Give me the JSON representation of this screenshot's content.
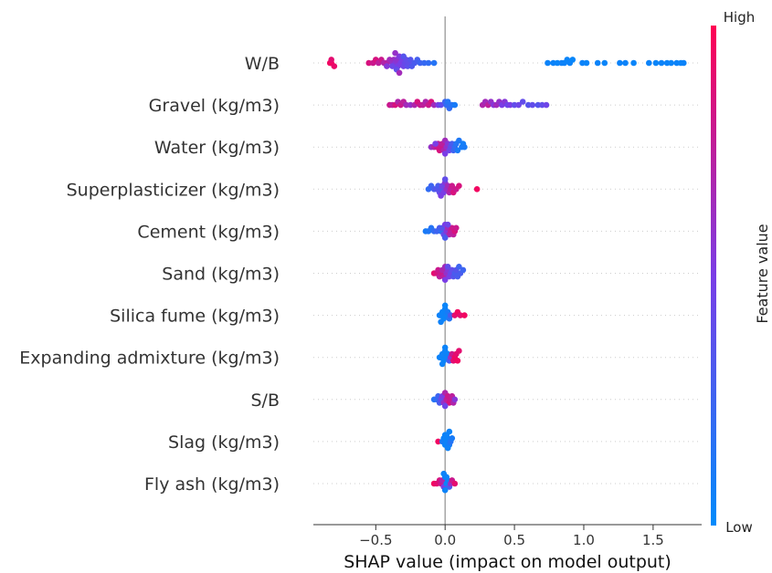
{
  "chart_data": {
    "type": "scatter",
    "subtype": "shap-beeswarm",
    "title": "",
    "xlabel": "SHAP value (impact on model output)",
    "xlim": [
      -0.95,
      1.85
    ],
    "xticks": [
      {
        "value": -0.5,
        "label": "−0.5"
      },
      {
        "value": 0.0,
        "label": "0.0"
      },
      {
        "value": 0.5,
        "label": "0.5"
      },
      {
        "value": 1.0,
        "label": "1.0"
      },
      {
        "value": 1.5,
        "label": "1.5"
      }
    ],
    "colorbar": {
      "title": "Feature value",
      "high_label": "High",
      "low_label": "Low",
      "high_color": "#ff0052",
      "low_color": "#008bfb"
    },
    "features": [
      {
        "name": "W/B",
        "points": [
          [
            -0.83,
            0.95
          ],
          [
            -0.82,
            0.95
          ],
          [
            -0.82,
            0.9
          ],
          [
            -0.8,
            0.92
          ],
          [
            -0.55,
            0.85
          ],
          [
            -0.52,
            0.8
          ],
          [
            -0.5,
            0.85
          ],
          [
            -0.48,
            0.75
          ],
          [
            -0.46,
            0.8
          ],
          [
            -0.44,
            0.7
          ],
          [
            -0.42,
            0.72
          ],
          [
            -0.4,
            0.65
          ],
          [
            -0.38,
            0.6
          ],
          [
            -0.37,
            0.62
          ],
          [
            -0.36,
            0.55
          ],
          [
            -0.35,
            0.58
          ],
          [
            -0.34,
            0.5
          ],
          [
            -0.33,
            0.52
          ],
          [
            -0.32,
            0.5
          ],
          [
            -0.31,
            0.48
          ],
          [
            -0.3,
            0.45
          ],
          [
            -0.29,
            0.42
          ],
          [
            -0.28,
            0.4
          ],
          [
            -0.27,
            0.38
          ],
          [
            -0.26,
            0.4
          ],
          [
            -0.25,
            0.35
          ],
          [
            -0.24,
            0.32
          ],
          [
            -0.22,
            0.3
          ],
          [
            -0.2,
            0.28
          ],
          [
            -0.18,
            0.25
          ],
          [
            -0.15,
            0.22
          ],
          [
            -0.12,
            0.2
          ],
          [
            -0.08,
            0.15
          ],
          [
            -0.42,
            0.55
          ],
          [
            -0.38,
            0.45
          ],
          [
            -0.35,
            0.4
          ],
          [
            -0.3,
            0.35
          ],
          [
            -0.36,
            0.6
          ],
          [
            -0.33,
            0.65
          ],
          [
            0.74,
            0.05
          ],
          [
            0.78,
            0.05
          ],
          [
            0.81,
            0.04
          ],
          [
            0.84,
            0.06
          ],
          [
            0.86,
            0.05
          ],
          [
            0.88,
            0.04
          ],
          [
            0.9,
            0.05
          ],
          [
            0.92,
            0.03
          ],
          [
            0.99,
            0.05
          ],
          [
            1.02,
            0.04
          ],
          [
            1.1,
            0.05
          ],
          [
            1.15,
            0.04
          ],
          [
            1.26,
            0.05
          ],
          [
            1.3,
            0.05
          ],
          [
            1.36,
            0.04
          ],
          [
            1.47,
            0.05
          ],
          [
            1.52,
            0.04
          ],
          [
            1.56,
            0.05
          ],
          [
            1.6,
            0.05
          ],
          [
            1.63,
            0.04
          ],
          [
            1.67,
            0.05
          ],
          [
            1.7,
            0.04
          ],
          [
            1.72,
            0.05
          ]
        ]
      },
      {
        "name": "Gravel (kg/m3)",
        "points": [
          [
            -0.4,
            0.8
          ],
          [
            -0.38,
            0.75
          ],
          [
            -0.36,
            0.85
          ],
          [
            -0.34,
            0.7
          ],
          [
            -0.32,
            0.8
          ],
          [
            -0.3,
            0.75
          ],
          [
            -0.28,
            0.65
          ],
          [
            -0.25,
            0.6
          ],
          [
            -0.22,
            0.7
          ],
          [
            -0.2,
            0.85
          ],
          [
            -0.18,
            0.8
          ],
          [
            -0.16,
            0.75
          ],
          [
            -0.14,
            0.7
          ],
          [
            -0.12,
            0.8
          ],
          [
            -0.1,
            0.85
          ],
          [
            -0.08,
            0.65
          ],
          [
            -0.05,
            0.5
          ],
          [
            -0.03,
            0.4
          ],
          [
            0.0,
            0.25
          ],
          [
            0.01,
            0.2
          ],
          [
            0.02,
            0.15
          ],
          [
            0.03,
            0.2
          ],
          [
            0.05,
            0.15
          ],
          [
            0.07,
            0.1
          ],
          [
            0.27,
            0.7
          ],
          [
            0.29,
            0.65
          ],
          [
            0.31,
            0.75
          ],
          [
            0.33,
            0.6
          ],
          [
            0.35,
            0.55
          ],
          [
            0.37,
            0.65
          ],
          [
            0.39,
            0.6
          ],
          [
            0.41,
            0.5
          ],
          [
            0.43,
            0.55
          ],
          [
            0.45,
            0.45
          ],
          [
            0.47,
            0.5
          ],
          [
            0.5,
            0.4
          ],
          [
            0.53,
            0.45
          ],
          [
            0.56,
            0.4
          ],
          [
            0.6,
            0.35
          ],
          [
            0.63,
            0.4
          ],
          [
            0.67,
            0.35
          ],
          [
            0.7,
            0.4
          ],
          [
            0.73,
            0.45
          ]
        ]
      },
      {
        "name": "Water (kg/m3)",
        "points": [
          [
            -0.1,
            0.6
          ],
          [
            -0.08,
            0.7
          ],
          [
            -0.06,
            0.8
          ],
          [
            -0.05,
            0.75
          ],
          [
            -0.04,
            0.85
          ],
          [
            -0.03,
            0.8
          ],
          [
            -0.02,
            0.75
          ],
          [
            -0.01,
            0.7
          ],
          [
            0.0,
            0.65
          ],
          [
            0.01,
            0.6
          ],
          [
            0.02,
            0.55
          ],
          [
            0.03,
            0.45
          ],
          [
            0.04,
            0.4
          ],
          [
            0.05,
            0.3
          ],
          [
            0.06,
            0.25
          ],
          [
            0.07,
            0.2
          ],
          [
            0.08,
            0.15
          ],
          [
            0.09,
            0.1
          ],
          [
            0.1,
            0.12
          ],
          [
            0.12,
            0.1
          ],
          [
            0.13,
            0.08
          ],
          [
            0.14,
            0.1
          ],
          [
            -0.07,
            0.5
          ],
          [
            0.0,
            0.5
          ]
        ]
      },
      {
        "name": "Superplasticizer (kg/m3)",
        "points": [
          [
            -0.12,
            0.2
          ],
          [
            -0.1,
            0.25
          ],
          [
            -0.08,
            0.3
          ],
          [
            -0.06,
            0.35
          ],
          [
            -0.05,
            0.3
          ],
          [
            -0.04,
            0.4
          ],
          [
            -0.03,
            0.35
          ],
          [
            -0.02,
            0.45
          ],
          [
            -0.01,
            0.5
          ],
          [
            0.0,
            0.55
          ],
          [
            0.01,
            0.6
          ],
          [
            0.02,
            0.65
          ],
          [
            0.03,
            0.7
          ],
          [
            0.04,
            0.75
          ],
          [
            0.05,
            0.8
          ],
          [
            0.06,
            0.85
          ],
          [
            0.08,
            0.8
          ],
          [
            0.1,
            0.85
          ],
          [
            0.23,
            0.95
          ],
          [
            -0.03,
            0.5
          ],
          [
            0.0,
            0.4
          ]
        ]
      },
      {
        "name": "Cement (kg/m3)",
        "points": [
          [
            -0.14,
            0.1
          ],
          [
            -0.12,
            0.12
          ],
          [
            -0.1,
            0.15
          ],
          [
            -0.08,
            0.2
          ],
          [
            -0.06,
            0.25
          ],
          [
            -0.04,
            0.3
          ],
          [
            -0.03,
            0.2
          ],
          [
            -0.02,
            0.35
          ],
          [
            -0.01,
            0.4
          ],
          [
            0.0,
            0.5
          ],
          [
            0.01,
            0.55
          ],
          [
            0.02,
            0.65
          ],
          [
            0.03,
            0.7
          ],
          [
            0.04,
            0.75
          ],
          [
            0.05,
            0.8
          ],
          [
            0.06,
            0.75
          ],
          [
            0.07,
            0.85
          ],
          [
            0.08,
            0.8
          ],
          [
            0.0,
            0.3
          ],
          [
            0.02,
            0.45
          ]
        ]
      },
      {
        "name": "Sand (kg/m3)",
        "points": [
          [
            -0.08,
            0.9
          ],
          [
            -0.06,
            0.85
          ],
          [
            -0.05,
            0.8
          ],
          [
            -0.04,
            0.75
          ],
          [
            -0.03,
            0.8
          ],
          [
            -0.02,
            0.7
          ],
          [
            -0.01,
            0.75
          ],
          [
            0.0,
            0.65
          ],
          [
            0.01,
            0.6
          ],
          [
            0.02,
            0.55
          ],
          [
            0.03,
            0.5
          ],
          [
            0.04,
            0.45
          ],
          [
            0.05,
            0.4
          ],
          [
            0.06,
            0.35
          ],
          [
            0.07,
            0.3
          ],
          [
            0.08,
            0.35
          ],
          [
            0.09,
            0.3
          ],
          [
            0.1,
            0.25
          ],
          [
            0.11,
            0.3
          ],
          [
            0.13,
            0.25
          ],
          [
            0.0,
            0.5
          ],
          [
            0.02,
            0.4
          ]
        ]
      },
      {
        "name": "Silica fume (kg/m3)",
        "points": [
          [
            -0.04,
            0.05
          ],
          [
            -0.03,
            0.06
          ],
          [
            -0.02,
            0.05
          ],
          [
            -0.01,
            0.04
          ],
          [
            0.0,
            0.05
          ],
          [
            0.01,
            0.06
          ],
          [
            0.02,
            0.1
          ],
          [
            0.03,
            0.15
          ],
          [
            0.04,
            0.3
          ],
          [
            0.07,
            0.9
          ],
          [
            0.09,
            0.95
          ],
          [
            0.11,
            0.9
          ],
          [
            0.14,
            0.95
          ],
          [
            -0.03,
            0.06
          ],
          [
            0.0,
            0.04
          ]
        ]
      },
      {
        "name": "Expanding admixture (kg/m3)",
        "points": [
          [
            -0.04,
            0.05
          ],
          [
            -0.03,
            0.05
          ],
          [
            -0.02,
            0.06
          ],
          [
            -0.01,
            0.04
          ],
          [
            0.0,
            0.05
          ],
          [
            0.01,
            0.06
          ],
          [
            0.02,
            0.05
          ],
          [
            0.03,
            0.3
          ],
          [
            0.04,
            0.6
          ],
          [
            0.05,
            0.8
          ],
          [
            0.06,
            0.9
          ],
          [
            0.07,
            0.95
          ],
          [
            0.08,
            0.9
          ],
          [
            0.09,
            0.95
          ],
          [
            0.1,
            0.9
          ],
          [
            -0.02,
            0.05
          ],
          [
            0.0,
            0.05
          ]
        ]
      },
      {
        "name": "S/B",
        "points": [
          [
            -0.08,
            0.15
          ],
          [
            -0.06,
            0.2
          ],
          [
            -0.05,
            0.25
          ],
          [
            -0.04,
            0.3
          ],
          [
            -0.03,
            0.4
          ],
          [
            -0.02,
            0.5
          ],
          [
            -0.01,
            0.6
          ],
          [
            0.0,
            0.7
          ],
          [
            0.01,
            0.75
          ],
          [
            0.02,
            0.8
          ],
          [
            0.03,
            0.85
          ],
          [
            0.04,
            0.8
          ],
          [
            0.05,
            0.75
          ],
          [
            0.06,
            0.7
          ],
          [
            0.07,
            0.55
          ],
          [
            0.0,
            0.45
          ]
        ]
      },
      {
        "name": "Slag (kg/m3)",
        "points": [
          [
            -0.05,
            0.95
          ],
          [
            -0.02,
            0.1
          ],
          [
            -0.01,
            0.05
          ],
          [
            0.0,
            0.05
          ],
          [
            0.01,
            0.06
          ],
          [
            0.02,
            0.05
          ],
          [
            0.03,
            0.1
          ],
          [
            0.04,
            0.15
          ],
          [
            0.05,
            0.1
          ],
          [
            0.0,
            0.05
          ],
          [
            0.01,
            0.05
          ],
          [
            0.02,
            0.06
          ],
          [
            0.03,
            0.05
          ]
        ]
      },
      {
        "name": "Fly ash (kg/m3)",
        "points": [
          [
            -0.08,
            0.95
          ],
          [
            -0.06,
            0.9
          ],
          [
            -0.04,
            0.85
          ],
          [
            -0.03,
            0.8
          ],
          [
            -0.02,
            0.7
          ],
          [
            -0.01,
            0.5
          ],
          [
            0.0,
            0.05
          ],
          [
            0.01,
            0.06
          ],
          [
            0.02,
            0.05
          ],
          [
            0.03,
            0.3
          ],
          [
            0.04,
            0.6
          ],
          [
            0.05,
            0.8
          ],
          [
            0.07,
            0.9
          ],
          [
            0.0,
            0.05
          ],
          [
            0.01,
            0.05
          ],
          [
            -0.01,
            0.05
          ]
        ]
      }
    ]
  }
}
